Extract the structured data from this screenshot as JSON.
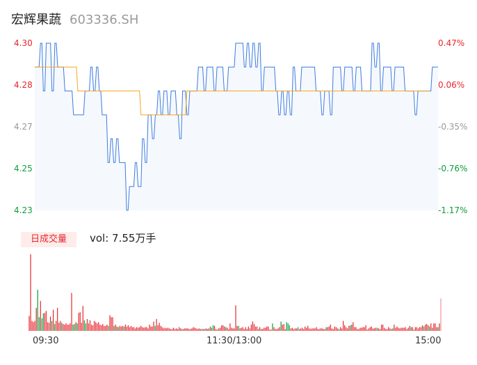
{
  "header": {
    "name": "宏辉果蔬",
    "code": "603336.SH"
  },
  "chart_data": [
    {
      "type": "line",
      "x_labels": [
        "09:30",
        "11:30/13:00",
        "15:00"
      ],
      "y_ticks_price": [
        "4.30",
        "4.28",
        "4.27",
        "4.25",
        "4.23"
      ],
      "y_ticks_pct": [
        "0.47%",
        "0.06%",
        "-0.35%",
        "-0.76%",
        "-1.17%"
      ],
      "ylim": [
        4.23,
        4.3
      ],
      "prev_close": 4.28,
      "series": [
        {
          "kind": "price",
          "color": "#3d7be0",
          "values": [
            4.29,
            4.29,
            4.29,
            4.29,
            4.3,
            4.3,
            4.28,
            4.28,
            4.3,
            4.3,
            4.3,
            4.3,
            4.28,
            4.28,
            4.3,
            4.3,
            4.29,
            4.29,
            4.29,
            4.29,
            4.29,
            4.28,
            4.28,
            4.28,
            4.28,
            4.28,
            4.28,
            4.27,
            4.27,
            4.27,
            4.27,
            4.27,
            4.27,
            4.27,
            4.27,
            4.28,
            4.28,
            4.28,
            4.28,
            4.29,
            4.29,
            4.28,
            4.28,
            4.29,
            4.29,
            4.28,
            4.28,
            4.27,
            4.27,
            4.27,
            4.27,
            4.25,
            4.25,
            4.26,
            4.26,
            4.25,
            4.25,
            4.26,
            4.26,
            4.25,
            4.25,
            4.25,
            4.25,
            4.25,
            4.23,
            4.23,
            4.24,
            4.24,
            4.24,
            4.24,
            4.25,
            4.25,
            4.24,
            4.24,
            4.24,
            4.26,
            4.26,
            4.25,
            4.25,
            4.27,
            4.27,
            4.27,
            4.26,
            4.26,
            4.27,
            4.27,
            4.28,
            4.28,
            4.27,
            4.27,
            4.28,
            4.28,
            4.28,
            4.27,
            4.27,
            4.28,
            4.28,
            4.28,
            4.28,
            4.27,
            4.27,
            4.26,
            4.26,
            4.28,
            4.28,
            4.28,
            4.27,
            4.27,
            4.28,
            4.28,
            4.28,
            4.28,
            4.28,
            4.28,
            4.29,
            4.29,
            4.29,
            4.29,
            4.28,
            4.28,
            4.29,
            4.29,
            4.29,
            4.29,
            4.29,
            4.28,
            4.28,
            4.29,
            4.29,
            4.29,
            4.29,
            4.29,
            4.28,
            4.28,
            4.28,
            4.29,
            4.29,
            4.29,
            4.29,
            4.29,
            4.3,
            4.3,
            4.3,
            4.3,
            4.3,
            4.3,
            4.29,
            4.29,
            4.3,
            4.3,
            4.29,
            4.29,
            4.3,
            4.3,
            4.29,
            4.29,
            4.3,
            4.3,
            4.28,
            4.28,
            4.29,
            4.29,
            4.29,
            4.29,
            4.29,
            4.29,
            4.29,
            4.29,
            4.28,
            4.28,
            4.27,
            4.27,
            4.28,
            4.28,
            4.27,
            4.27,
            4.28,
            4.28,
            4.27,
            4.27,
            4.29,
            4.29,
            4.28,
            4.28,
            4.28,
            4.28,
            4.29,
            4.29,
            4.29,
            4.29,
            4.29,
            4.29,
            4.29,
            4.29,
            4.29,
            4.29,
            4.28,
            4.28,
            4.28,
            4.28,
            4.27,
            4.27,
            4.28,
            4.28,
            4.28,
            4.28,
            4.27,
            4.27,
            4.29,
            4.29,
            4.29,
            4.29,
            4.29,
            4.29,
            4.28,
            4.28,
            4.29,
            4.29,
            4.29,
            4.29,
            4.29,
            4.29,
            4.28,
            4.28,
            4.29,
            4.29,
            4.29,
            4.29,
            4.28,
            4.28,
            4.28,
            4.28,
            4.28,
            4.28,
            4.28,
            4.3,
            4.3,
            4.29,
            4.29,
            4.3,
            4.3,
            4.28,
            4.28,
            4.29,
            4.29,
            4.29,
            4.29,
            4.29,
            4.29,
            4.28,
            4.28,
            4.29,
            4.29,
            4.29,
            4.29,
            4.29,
            4.29,
            4.29,
            4.28,
            4.28,
            4.28,
            4.28,
            4.28,
            4.28,
            4.28,
            4.27,
            4.27,
            4.28,
            4.28,
            4.28,
            4.28,
            4.28,
            4.28,
            4.28,
            4.28,
            4.28,
            4.28,
            4.29,
            4.29,
            4.29,
            4.29,
            4.29
          ]
        },
        {
          "kind": "average",
          "color": "#f5a623",
          "values": [
            4.29,
            4.29,
            4.29,
            4.29,
            4.29,
            4.29,
            4.29,
            4.29,
            4.29,
            4.29,
            4.29,
            4.29,
            4.29,
            4.29,
            4.29,
            4.29,
            4.29,
            4.29,
            4.29,
            4.29,
            4.29,
            4.29,
            4.29,
            4.29,
            4.29,
            4.29,
            4.29,
            4.29,
            4.29,
            4.29,
            4.28,
            4.28,
            4.28,
            4.28,
            4.28,
            4.28,
            4.28,
            4.28,
            4.28,
            4.28,
            4.28,
            4.28,
            4.28,
            4.28,
            4.28,
            4.28,
            4.28,
            4.28,
            4.28,
            4.28,
            4.28,
            4.28,
            4.28,
            4.28,
            4.28,
            4.28,
            4.28,
            4.28,
            4.28,
            4.28,
            4.28,
            4.28,
            4.28,
            4.28,
            4.28,
            4.28,
            4.28,
            4.28,
            4.28,
            4.28,
            4.28,
            4.28,
            4.28,
            4.28,
            4.27,
            4.27,
            4.27,
            4.27,
            4.27,
            4.27,
            4.27,
            4.27,
            4.27,
            4.27,
            4.27,
            4.27,
            4.27,
            4.27,
            4.27,
            4.27,
            4.27,
            4.27,
            4.27,
            4.27,
            4.27,
            4.27,
            4.27,
            4.27,
            4.27,
            4.27,
            4.27,
            4.27,
            4.27,
            4.27,
            4.27,
            4.27,
            4.28,
            4.28,
            4.28,
            4.28,
            4.28,
            4.28,
            4.28,
            4.28,
            4.28,
            4.28,
            4.28,
            4.28,
            4.28,
            4.28,
            4.28,
            4.28,
            4.28,
            4.28,
            4.28,
            4.28,
            4.28,
            4.28,
            4.28,
            4.28,
            4.28,
            4.28,
            4.28,
            4.28,
            4.28,
            4.28,
            4.28,
            4.28,
            4.28,
            4.28,
            4.28,
            4.28,
            4.28,
            4.28,
            4.28,
            4.28,
            4.28,
            4.28,
            4.28,
            4.28,
            4.28,
            4.28,
            4.28,
            4.28,
            4.28,
            4.28,
            4.28,
            4.28,
            4.28,
            4.28,
            4.28,
            4.28,
            4.28,
            4.28,
            4.28,
            4.28,
            4.28,
            4.28,
            4.28,
            4.28,
            4.28,
            4.28,
            4.28,
            4.28,
            4.28,
            4.28,
            4.28,
            4.28,
            4.28,
            4.28,
            4.28,
            4.28,
            4.28,
            4.28,
            4.28,
            4.28,
            4.28,
            4.28,
            4.28,
            4.28,
            4.28,
            4.28,
            4.28,
            4.28,
            4.28,
            4.28,
            4.28,
            4.28,
            4.28,
            4.28,
            4.28,
            4.28,
            4.28,
            4.28,
            4.28,
            4.28,
            4.28,
            4.28,
            4.28,
            4.28,
            4.28,
            4.28,
            4.28,
            4.28,
            4.28,
            4.28,
            4.28,
            4.28,
            4.28,
            4.28,
            4.28,
            4.28,
            4.28,
            4.28,
            4.28,
            4.28,
            4.28,
            4.28,
            4.28,
            4.28,
            4.28,
            4.28,
            4.28,
            4.28,
            4.28,
            4.28,
            4.28,
            4.28,
            4.28,
            4.28,
            4.28,
            4.28,
            4.28,
            4.28,
            4.28,
            4.28,
            4.28,
            4.28,
            4.28,
            4.28,
            4.28,
            4.28,
            4.28,
            4.28,
            4.28,
            4.28,
            4.28,
            4.28,
            4.28,
            4.28,
            4.28,
            4.28,
            4.28,
            4.28,
            4.28,
            4.28,
            4.28,
            4.28,
            4.28,
            4.28,
            4.28,
            4.28,
            4.28,
            4.28,
            4.28,
            4.28
          ]
        }
      ]
    },
    {
      "type": "bar",
      "badge": "日成交量",
      "vol_label": "vol: 7.55万手",
      "values": [
        24,
        123,
        16,
        14,
        16,
        37,
        66,
        22,
        48,
        20,
        28,
        29,
        32,
        14,
        13,
        23,
        16,
        34,
        11,
        16,
        37,
        13,
        16,
        13,
        11,
        10,
        12,
        10,
        10,
        12,
        61,
        10,
        11,
        14,
        12,
        29,
        30,
        13,
        40,
        17,
        12,
        19,
        12,
        17,
        10,
        9,
        16,
        14,
        12,
        14,
        10,
        9,
        11,
        8,
        8,
        10,
        8,
        25,
        22,
        22,
        8,
        10,
        7,
        6,
        8,
        7,
        8,
        7,
        10,
        7,
        9,
        6,
        8,
        6,
        6,
        4,
        6,
        5,
        6,
        8,
        6,
        5,
        6,
        6,
        4,
        10,
        7,
        7,
        15,
        8,
        19,
        9,
        13,
        8,
        6,
        4,
        5,
        4,
        5,
        4,
        3,
        3,
        5,
        3,
        4,
        3,
        6,
        4,
        3,
        3,
        4,
        4,
        4,
        3,
        3,
        4,
        6,
        5,
        4,
        3,
        4,
        3,
        3,
        3,
        3,
        4,
        3,
        4,
        7,
        5,
        9,
        8,
        3,
        2,
        4,
        5,
        9,
        9,
        7,
        6,
        5,
        3,
        12,
        5,
        4,
        4,
        41,
        8,
        8,
        4,
        5,
        6,
        3,
        6,
        3,
        7,
        4,
        10,
        15,
        11,
        7,
        7,
        3,
        6,
        3,
        3,
        5,
        5,
        7,
        7,
        2,
        2,
        12,
        6,
        3,
        3,
        4,
        6,
        15,
        10,
        11,
        3,
        14,
        12,
        9,
        4,
        5,
        3,
        4,
        4,
        6,
        3,
        4,
        5,
        3,
        7,
        5,
        8,
        4,
        3,
        4,
        4,
        4,
        6,
        3,
        3,
        4,
        4,
        3,
        3,
        6,
        6,
        7,
        10,
        4,
        3,
        7,
        6,
        4,
        3,
        6,
        4,
        16,
        9,
        6,
        4,
        8,
        9,
        10,
        14,
        6,
        6,
        3,
        3,
        5,
        5,
        6,
        6,
        9,
        2,
        4,
        6,
        7,
        4,
        4,
        5,
        5,
        4,
        3,
        10,
        10,
        5,
        3,
        3,
        6,
        4,
        3,
        4,
        10,
        5,
        7,
        5,
        4,
        5,
        5,
        5,
        6,
        3,
        5,
        8,
        6,
        6,
        2,
        6,
        6,
        4,
        6,
        6,
        9,
        7,
        10,
        11,
        9,
        7,
        12,
        5,
        12,
        12,
        6,
        6,
        12,
        52
      ],
      "up": [
        1,
        1,
        1,
        1,
        1,
        1,
        0,
        0,
        1,
        0,
        0,
        1,
        1,
        1,
        1,
        1,
        0,
        1,
        0,
        1,
        1,
        1,
        1,
        0,
        1,
        1,
        1,
        1,
        1,
        1,
        1,
        0,
        0,
        1,
        0,
        1,
        1,
        1,
        1,
        0,
        0,
        1,
        1,
        1,
        1,
        1,
        1,
        1,
        1,
        1,
        1,
        1,
        1,
        1,
        1,
        1,
        0,
        1,
        1,
        1,
        0,
        1,
        1,
        0,
        1,
        1,
        1,
        0,
        1,
        1,
        1,
        1,
        1,
        1,
        1,
        1,
        1,
        1,
        1,
        1,
        1,
        1,
        1,
        1,
        1,
        1,
        1,
        1,
        1,
        0,
        1,
        1,
        1,
        1,
        1,
        1,
        1,
        1,
        1,
        1,
        1,
        1,
        1,
        1,
        1,
        1,
        1,
        1,
        0,
        1,
        1,
        1,
        1,
        1,
        1,
        1,
        1,
        1,
        1,
        1,
        1,
        1,
        0,
        1,
        0,
        1,
        1,
        1,
        0,
        1,
        0,
        1,
        1,
        1,
        1,
        1,
        1,
        1,
        1,
        0,
        1,
        1,
        1,
        1,
        1,
        1,
        1,
        1,
        0,
        1,
        1,
        1,
        1,
        1,
        1,
        1,
        1,
        1,
        1,
        1,
        1,
        1,
        0,
        1,
        1,
        1,
        1,
        1,
        1,
        1,
        1,
        1,
        0,
        1,
        1,
        1,
        1,
        1,
        0,
        1,
        1,
        1,
        0,
        0,
        0,
        1,
        1,
        1,
        1,
        1,
        0,
        1,
        1,
        1,
        1,
        1,
        1,
        1,
        1,
        1,
        1,
        1,
        1,
        1,
        1,
        1,
        1,
        1,
        1,
        1,
        0,
        1,
        1,
        1,
        1,
        1,
        1,
        1,
        1,
        0,
        1,
        1,
        1,
        1,
        1,
        1,
        1,
        0,
        1,
        1,
        1,
        1,
        1,
        1,
        1,
        1,
        1,
        1,
        1,
        1,
        1,
        1,
        1,
        1,
        1,
        1,
        0,
        1,
        1,
        1,
        1,
        1,
        1,
        1,
        1,
        1,
        1,
        0,
        1,
        1,
        1,
        1,
        1,
        1,
        1,
        1,
        1,
        1,
        1,
        1,
        0,
        1,
        1,
        1,
        1,
        1,
        1,
        1,
        1,
        0,
        1,
        1,
        1,
        0,
        1,
        1,
        1,
        1,
        1,
        0,
        1,
        1,
        0,
        1,
        1,
        1,
        1,
        1,
        1,
        1,
        1
      ],
      "colors": {
        "up": "#e8262d",
        "down": "#0f9d3a"
      }
    }
  ]
}
